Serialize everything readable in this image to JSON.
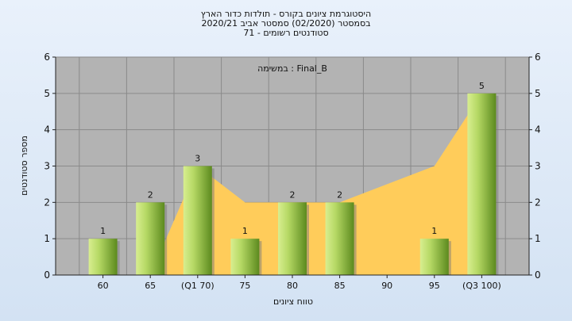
{
  "title_lines": [
    "היסטוגרמת ציונים בקורס - תולדות כדור הארץ",
    "בסמסטר  (02/2020)  סמסטר אביב 2020/21",
    "סטודנטים רשומים - 71"
  ],
  "chart_data": {
    "type": "bar",
    "categories": [
      "60",
      "65",
      "(Q1 70)",
      "75",
      "80",
      "85",
      "90",
      "95",
      "(Q3 100)"
    ],
    "values": [
      1,
      2,
      3,
      1,
      2,
      2,
      0,
      1,
      5
    ],
    "data_labels": [
      "1",
      "2",
      "3",
      "1",
      "2",
      "2",
      "",
      "1",
      "5"
    ],
    "area_series": {
      "values": [
        0,
        0,
        3,
        2,
        2,
        2,
        2.5,
        3,
        5
      ],
      "color": "#ffcc5a"
    },
    "xlabel": "טווח ציונים",
    "ylabel": "מספר סטודנטים",
    "ylim": [
      0,
      6
    ],
    "yticks": [
      0,
      1,
      2,
      3,
      4,
      5,
      6
    ],
    "annotation": "במשימה : Final_B",
    "grid": true,
    "plot_background": "#b3b3b3",
    "bar_color_light": "#d8ee90",
    "bar_color_dark": "#5c8a1e"
  }
}
